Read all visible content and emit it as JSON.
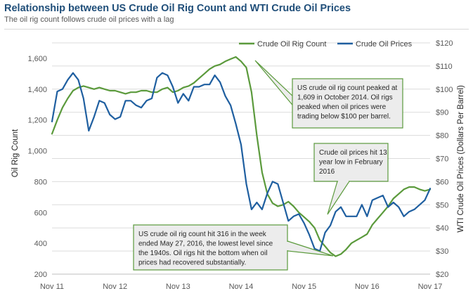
{
  "header": {
    "title": "Relationship between US Crude Oil Rig Count and WTI Crude Oil Prices",
    "subtitle": "The oil rig count follows crude oil prices with a lag"
  },
  "chart_data": {
    "type": "line",
    "title": "Relationship between US Crude Oil Rig Count and WTI Crude Oil Prices",
    "subtitle": "The oil rig count follows crude oil prices with a lag",
    "xlabel": "",
    "ylabel_left": "Oil Rig Count",
    "ylabel_right": "WTI Crude Oil Prices (Dollars Per Barrel)",
    "x_ticks": [
      "Nov 11",
      "Nov 12",
      "Nov 13",
      "Nov 14",
      "Nov 15",
      "Nov 16",
      "Nov 17"
    ],
    "y_left_ticks": [
      "200",
      "400",
      "600",
      "800",
      "1,000",
      "1,200",
      "1,400",
      "1,600"
    ],
    "y_right_ticks": [
      "$20",
      "$30",
      "$40",
      "$50",
      "$60",
      "$70",
      "$80",
      "$90",
      "$100",
      "$110",
      "$120"
    ],
    "ylim_left": [
      200,
      1700
    ],
    "ylim_right": [
      20,
      120
    ],
    "legend_position": "top",
    "grid": "horizontal",
    "series": [
      {
        "name": "Crude Oil Rig Count",
        "axis": "left",
        "color": "#5b9a3c",
        "points": [
          [
            "2011-11",
            1110
          ],
          [
            "2011-12",
            1200
          ],
          [
            "2012-01",
            1280
          ],
          [
            "2012-02",
            1340
          ],
          [
            "2012-03",
            1390
          ],
          [
            "2012-04",
            1410
          ],
          [
            "2012-05",
            1420
          ],
          [
            "2012-06",
            1410
          ],
          [
            "2012-07",
            1400
          ],
          [
            "2012-08",
            1410
          ],
          [
            "2012-09",
            1400
          ],
          [
            "2012-10",
            1390
          ],
          [
            "2012-11",
            1390
          ],
          [
            "2012-12",
            1380
          ],
          [
            "2013-01",
            1370
          ],
          [
            "2013-02",
            1380
          ],
          [
            "2013-03",
            1380
          ],
          [
            "2013-04",
            1390
          ],
          [
            "2013-05",
            1390
          ],
          [
            "2013-06",
            1380
          ],
          [
            "2013-07",
            1380
          ],
          [
            "2013-08",
            1400
          ],
          [
            "2013-09",
            1410
          ],
          [
            "2013-10",
            1380
          ],
          [
            "2013-11",
            1390
          ],
          [
            "2013-12",
            1410
          ],
          [
            "2014-01",
            1420
          ],
          [
            "2014-02",
            1440
          ],
          [
            "2014-03",
            1470
          ],
          [
            "2014-04",
            1500
          ],
          [
            "2014-05",
            1530
          ],
          [
            "2014-06",
            1550
          ],
          [
            "2014-07",
            1560
          ],
          [
            "2014-08",
            1580
          ],
          [
            "2014-09",
            1595
          ],
          [
            "2014-10",
            1609
          ],
          [
            "2014-11",
            1580
          ],
          [
            "2014-12",
            1540
          ],
          [
            "2015-01",
            1380
          ],
          [
            "2015-02",
            1100
          ],
          [
            "2015-03",
            860
          ],
          [
            "2015-04",
            720
          ],
          [
            "2015-05",
            660
          ],
          [
            "2015-06",
            640
          ],
          [
            "2015-07",
            650
          ],
          [
            "2015-08",
            670
          ],
          [
            "2015-09",
            640
          ],
          [
            "2015-10",
            600
          ],
          [
            "2015-11",
            570
          ],
          [
            "2015-12",
            540
          ],
          [
            "2016-01",
            500
          ],
          [
            "2016-02",
            420
          ],
          [
            "2016-03",
            380
          ],
          [
            "2016-04",
            340
          ],
          [
            "2016-05",
            316
          ],
          [
            "2016-06",
            330
          ],
          [
            "2016-07",
            360
          ],
          [
            "2016-08",
            400
          ],
          [
            "2016-09",
            420
          ],
          [
            "2016-10",
            440
          ],
          [
            "2016-11",
            460
          ],
          [
            "2016-12",
            520
          ],
          [
            "2017-01",
            560
          ],
          [
            "2017-02",
            600
          ],
          [
            "2017-03",
            640
          ],
          [
            "2017-04",
            690
          ],
          [
            "2017-05",
            720
          ],
          [
            "2017-06",
            750
          ],
          [
            "2017-07",
            765
          ],
          [
            "2017-08",
            765
          ],
          [
            "2017-09",
            750
          ],
          [
            "2017-10",
            740
          ],
          [
            "2017-11",
            750
          ]
        ]
      },
      {
        "name": "Crude Oil Prices",
        "axis": "right",
        "color": "#1f5fa0",
        "points": [
          [
            "2011-11",
            86
          ],
          [
            "2011-12",
            99
          ],
          [
            "2012-01",
            100
          ],
          [
            "2012-02",
            104
          ],
          [
            "2012-03",
            107
          ],
          [
            "2012-04",
            104
          ],
          [
            "2012-05",
            96
          ],
          [
            "2012-06",
            82
          ],
          [
            "2012-07",
            88
          ],
          [
            "2012-08",
            95
          ],
          [
            "2012-09",
            94
          ],
          [
            "2012-10",
            89
          ],
          [
            "2012-11",
            87
          ],
          [
            "2012-12",
            88
          ],
          [
            "2013-01",
            95
          ],
          [
            "2013-02",
            95
          ],
          [
            "2013-03",
            93
          ],
          [
            "2013-04",
            92
          ],
          [
            "2013-05",
            95
          ],
          [
            "2013-06",
            96
          ],
          [
            "2013-07",
            105
          ],
          [
            "2013-08",
            107
          ],
          [
            "2013-09",
            106
          ],
          [
            "2013-10",
            101
          ],
          [
            "2013-11",
            94
          ],
          [
            "2013-12",
            98
          ],
          [
            "2014-01",
            95
          ],
          [
            "2014-02",
            101
          ],
          [
            "2014-03",
            101
          ],
          [
            "2014-04",
            102
          ],
          [
            "2014-05",
            102
          ],
          [
            "2014-06",
            106
          ],
          [
            "2014-07",
            103
          ],
          [
            "2014-08",
            97
          ],
          [
            "2014-09",
            93
          ],
          [
            "2014-10",
            85
          ],
          [
            "2014-11",
            76
          ],
          [
            "2014-12",
            59
          ],
          [
            "2015-01",
            48
          ],
          [
            "2015-02",
            51
          ],
          [
            "2015-03",
            48
          ],
          [
            "2015-04",
            55
          ],
          [
            "2015-05",
            60
          ],
          [
            "2015-06",
            59
          ],
          [
            "2015-07",
            51
          ],
          [
            "2015-08",
            43
          ],
          [
            "2015-09",
            45
          ],
          [
            "2015-10",
            46
          ],
          [
            "2015-11",
            42
          ],
          [
            "2015-12",
            37
          ],
          [
            "2016-01",
            31
          ],
          [
            "2016-02",
            30
          ],
          [
            "2016-03",
            38
          ],
          [
            "2016-04",
            41
          ],
          [
            "2016-05",
            47
          ],
          [
            "2016-06",
            49
          ],
          [
            "2016-07",
            45
          ],
          [
            "2016-08",
            45
          ],
          [
            "2016-09",
            45
          ],
          [
            "2016-10",
            50
          ],
          [
            "2016-11",
            45
          ],
          [
            "2016-12",
            52
          ],
          [
            "2017-01",
            53
          ],
          [
            "2017-02",
            54
          ],
          [
            "2017-03",
            49
          ],
          [
            "2017-04",
            51
          ],
          [
            "2017-05",
            49
          ],
          [
            "2017-06",
            45
          ],
          [
            "2017-07",
            47
          ],
          [
            "2017-08",
            48
          ],
          [
            "2017-09",
            50
          ],
          [
            "2017-10",
            52
          ],
          [
            "2017-11",
            57
          ]
        ]
      }
    ],
    "annotations": [
      {
        "id": "peak",
        "lines": [
          "US crude oil rig count peaked at",
          "1,609 in October 2014.  Oil rigs",
          "peaked when oil prices were",
          "trading below $100 per barrel."
        ]
      },
      {
        "id": "low",
        "lines": [
          "Crude oil prices hit 13",
          "year low in February",
          "2016"
        ]
      },
      {
        "id": "bottom",
        "lines": [
          "US crude oil rig count hit 316 in the week",
          "ended May 27, 2016, the lowest level since",
          "the 1940s. Oil rigs hit the bottom when oil",
          "prices had recovered substantially."
        ]
      }
    ]
  }
}
